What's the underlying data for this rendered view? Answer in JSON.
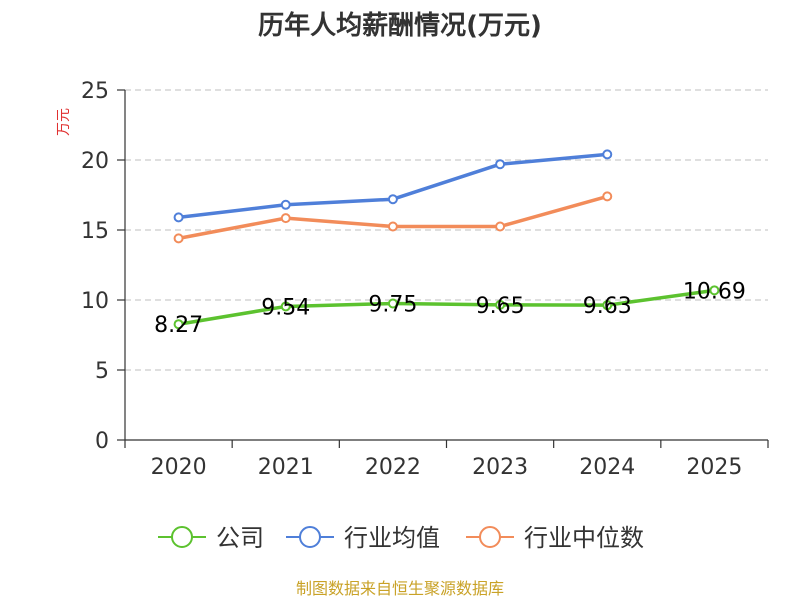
{
  "chart_data": {
    "type": "line",
    "title": "历年人均薪酬情况(万元)",
    "ylabel": "万元",
    "xlabel": "",
    "categories": [
      "2020",
      "2021",
      "2022",
      "2023",
      "2024",
      "2025"
    ],
    "ylim": [
      0,
      25
    ],
    "yticks": [
      0,
      5,
      10,
      15,
      20,
      25
    ],
    "grid": true,
    "legend_position": "bottom",
    "series": [
      {
        "name": "公司",
        "color": "#5cc22f",
        "values": [
          8.27,
          9.54,
          9.75,
          9.65,
          9.63,
          10.69
        ],
        "show_labels": true
      },
      {
        "name": "行业均值",
        "color": "#4f7fd9",
        "values": [
          15.9,
          16.8,
          17.2,
          19.7,
          20.4,
          null
        ],
        "show_labels": false
      },
      {
        "name": "行业中位数",
        "color": "#f28c5a",
        "values": [
          14.4,
          15.85,
          15.25,
          15.25,
          17.4,
          null
        ],
        "show_labels": false
      }
    ],
    "data_labels": [
      "8.27",
      "9.54",
      "9.75",
      "9.65",
      "9.63",
      "10.69"
    ]
  },
  "source": "制图数据来自恒生聚源数据库",
  "colors": {
    "ylabel": "#e03030",
    "source": "#c9a227",
    "axis": "#333333",
    "grid": "#cccccc"
  }
}
